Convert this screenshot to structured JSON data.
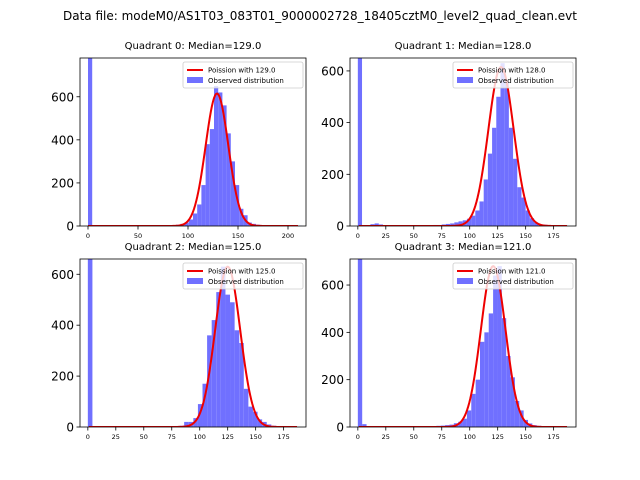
{
  "figure_title": "Data file: modeM0/AS1T03_083T01_9000002728_18405cztM0_level2_quad_clean.evt",
  "colors": {
    "hist": "#7070ff",
    "fit": "#ee0000",
    "axis": "#000000"
  },
  "chart_data": [
    {
      "type": "bar",
      "title": "Quadrant 0: Median=129.0",
      "median": 129.0,
      "xlim": [
        -8,
        218
      ],
      "ylim": [
        0,
        780
      ],
      "xticks": [
        0,
        50,
        100,
        150,
        200
      ],
      "yticks": [
        0,
        200,
        400,
        600
      ],
      "bin_width": 4.2,
      "legend": {
        "position": "top-right",
        "fit_label": "Poission with 129.0",
        "hist_label": "Observed distribution"
      },
      "bins": [
        [
          0,
          780
        ],
        [
          4.2,
          2
        ],
        [
          8.4,
          1
        ],
        [
          12.6,
          2
        ],
        [
          16.8,
          1
        ],
        [
          21,
          1
        ],
        [
          25.2,
          1
        ],
        [
          29.4,
          1
        ],
        [
          33.6,
          1
        ],
        [
          37.8,
          1
        ],
        [
          42,
          1
        ],
        [
          46.2,
          1
        ],
        [
          50.4,
          2
        ],
        [
          54.6,
          1
        ],
        [
          58.8,
          1
        ],
        [
          63,
          2
        ],
        [
          67.2,
          2
        ],
        [
          71.4,
          2
        ],
        [
          75.6,
          3
        ],
        [
          79.8,
          3
        ],
        [
          84,
          4
        ],
        [
          88.2,
          6
        ],
        [
          92.4,
          10
        ],
        [
          96.6,
          16
        ],
        [
          100.8,
          30
        ],
        [
          105,
          58
        ],
        [
          109.2,
          100
        ],
        [
          113.4,
          190
        ],
        [
          117.6,
          380
        ],
        [
          121.8,
          450
        ],
        [
          126,
          650
        ],
        [
          130.2,
          620
        ],
        [
          134.4,
          560
        ],
        [
          138.6,
          430
        ],
        [
          142.8,
          300
        ],
        [
          147,
          190
        ],
        [
          151.2,
          80
        ],
        [
          155.4,
          50
        ],
        [
          159.6,
          16
        ],
        [
          163.8,
          10
        ],
        [
          168,
          6
        ],
        [
          172.2,
          4
        ],
        [
          176.4,
          3
        ],
        [
          180.6,
          2
        ],
        [
          184.8,
          1
        ],
        [
          189,
          1
        ],
        [
          193.2,
          1
        ],
        [
          197.4,
          1
        ],
        [
          201.6,
          1
        ],
        [
          205.8,
          1
        ],
        [
          210,
          1
        ]
      ],
      "fit": {
        "mean": 129.0,
        "peak": 615
      }
    },
    {
      "type": "bar",
      "title": "Quadrant 1: Median=128.0",
      "median": 128.0,
      "xlim": [
        -7,
        195
      ],
      "ylim": [
        0,
        650
      ],
      "xticks": [
        0,
        25,
        50,
        75,
        100,
        125,
        150,
        175
      ],
      "yticks": [
        0,
        200,
        400,
        600
      ],
      "bin_width": 3.75,
      "legend": {
        "position": "top-right",
        "fit_label": "Poission with 128.0",
        "hist_label": "Observed distribution"
      },
      "bins": [
        [
          0,
          650
        ],
        [
          3.75,
          2
        ],
        [
          7.5,
          3
        ],
        [
          11.25,
          7
        ],
        [
          15,
          10
        ],
        [
          18.75,
          6
        ],
        [
          22.5,
          3
        ],
        [
          26.25,
          3
        ],
        [
          30,
          2
        ],
        [
          33.75,
          2
        ],
        [
          37.5,
          2
        ],
        [
          41.25,
          2
        ],
        [
          45,
          2
        ],
        [
          48.75,
          2
        ],
        [
          52.5,
          3
        ],
        [
          56.25,
          3
        ],
        [
          60,
          3
        ],
        [
          63.75,
          3
        ],
        [
          67.5,
          4
        ],
        [
          71.25,
          4
        ],
        [
          75,
          6
        ],
        [
          78.75,
          8
        ],
        [
          82.5,
          10
        ],
        [
          86.25,
          14
        ],
        [
          90,
          18
        ],
        [
          93.75,
          22
        ],
        [
          97.5,
          28
        ],
        [
          101.25,
          40
        ],
        [
          105,
          60
        ],
        [
          108.75,
          95
        ],
        [
          112.5,
          180
        ],
        [
          116.25,
          280
        ],
        [
          120,
          380
        ],
        [
          123.75,
          500
        ],
        [
          127.5,
          630
        ],
        [
          131.25,
          560
        ],
        [
          135,
          380
        ],
        [
          138.75,
          260
        ],
        [
          142.5,
          150
        ],
        [
          146.25,
          110
        ],
        [
          150,
          60
        ],
        [
          153.75,
          30
        ],
        [
          157.5,
          14
        ],
        [
          161.25,
          7
        ],
        [
          165,
          5
        ],
        [
          168.75,
          3
        ],
        [
          172.5,
          2
        ],
        [
          176.25,
          1
        ],
        [
          180,
          1
        ],
        [
          183.75,
          1
        ]
      ],
      "fit": {
        "mean": 128.0,
        "peak": 615
      }
    },
    {
      "type": "bar",
      "title": "Quadrant 2: Median=125.0",
      "median": 125.0,
      "xlim": [
        -7,
        195
      ],
      "ylim": [
        0,
        660
      ],
      "xticks": [
        0,
        25,
        50,
        75,
        100,
        125,
        150,
        175
      ],
      "yticks": [
        0,
        200,
        400,
        600
      ],
      "bin_width": 4.1,
      "legend": {
        "position": "top-right",
        "fit_label": "Poission with 125.0",
        "hist_label": "Observed distribution"
      },
      "bins": [
        [
          0,
          660
        ],
        [
          4.1,
          2
        ],
        [
          8.2,
          1
        ],
        [
          12.3,
          1
        ],
        [
          16.4,
          1
        ],
        [
          20.5,
          1
        ],
        [
          24.6,
          1
        ],
        [
          28.7,
          1
        ],
        [
          32.8,
          1
        ],
        [
          36.9,
          1
        ],
        [
          41,
          1
        ],
        [
          45.1,
          1
        ],
        [
          49.2,
          1
        ],
        [
          53.3,
          1
        ],
        [
          57.4,
          1
        ],
        [
          61.5,
          2
        ],
        [
          65.6,
          2
        ],
        [
          69.7,
          2
        ],
        [
          73.8,
          3
        ],
        [
          77.9,
          4
        ],
        [
          82,
          5
        ],
        [
          86.1,
          20
        ],
        [
          90.2,
          20
        ],
        [
          94.3,
          35
        ],
        [
          98.4,
          90
        ],
        [
          102.5,
          170
        ],
        [
          106.6,
          360
        ],
        [
          110.7,
          420
        ],
        [
          114.8,
          530
        ],
        [
          118.9,
          630
        ],
        [
          123,
          520
        ],
        [
          127.1,
          490
        ],
        [
          131.2,
          380
        ],
        [
          135.3,
          330
        ],
        [
          139.4,
          150
        ],
        [
          143.5,
          80
        ],
        [
          147.6,
          60
        ],
        [
          151.7,
          30
        ],
        [
          155.8,
          20
        ],
        [
          159.9,
          10
        ],
        [
          164,
          5
        ],
        [
          168.1,
          3
        ],
        [
          172.2,
          2
        ],
        [
          176.3,
          1
        ],
        [
          180.4,
          1
        ]
      ],
      "fit": {
        "mean": 125.0,
        "peak": 630
      }
    },
    {
      "type": "bar",
      "title": "Quadrant 3: Median=121.0",
      "median": 121.0,
      "xlim": [
        -7,
        195
      ],
      "ylim": [
        0,
        710
      ],
      "xticks": [
        0,
        25,
        50,
        75,
        100,
        125,
        150,
        175
      ],
      "yticks": [
        0,
        200,
        400,
        600
      ],
      "bin_width": 3.9,
      "legend": {
        "position": "top-right",
        "fit_label": "Poission with 121.0",
        "hist_label": "Observed distribution"
      },
      "bins": [
        [
          0,
          710
        ],
        [
          3.9,
          12
        ],
        [
          7.8,
          3
        ],
        [
          11.7,
          2
        ],
        [
          15.6,
          2
        ],
        [
          19.5,
          2
        ],
        [
          23.4,
          2
        ],
        [
          27.3,
          2
        ],
        [
          31.2,
          2
        ],
        [
          35.1,
          2
        ],
        [
          39,
          2
        ],
        [
          42.9,
          2
        ],
        [
          46.8,
          3
        ],
        [
          50.7,
          3
        ],
        [
          54.6,
          3
        ],
        [
          58.5,
          3
        ],
        [
          62.4,
          4
        ],
        [
          66.3,
          4
        ],
        [
          70.2,
          5
        ],
        [
          74.1,
          6
        ],
        [
          78,
          8
        ],
        [
          81.9,
          10
        ],
        [
          85.8,
          16
        ],
        [
          89.7,
          22
        ],
        [
          93.6,
          35
        ],
        [
          97.5,
          70
        ],
        [
          101.4,
          140
        ],
        [
          105.3,
          200
        ],
        [
          109.2,
          360
        ],
        [
          113.1,
          400
        ],
        [
          117,
          480
        ],
        [
          120.9,
          640
        ],
        [
          124.8,
          680
        ],
        [
          128.7,
          460
        ],
        [
          132.6,
          300
        ],
        [
          136.5,
          210
        ],
        [
          140.4,
          110
        ],
        [
          144.3,
          70
        ],
        [
          148.2,
          30
        ],
        [
          152.1,
          15
        ],
        [
          156,
          8
        ],
        [
          159.9,
          5
        ],
        [
          163.8,
          3
        ],
        [
          167.7,
          2
        ],
        [
          171.6,
          1
        ],
        [
          175.5,
          1
        ]
      ],
      "fit": {
        "mean": 121.0,
        "peak": 680
      }
    }
  ]
}
